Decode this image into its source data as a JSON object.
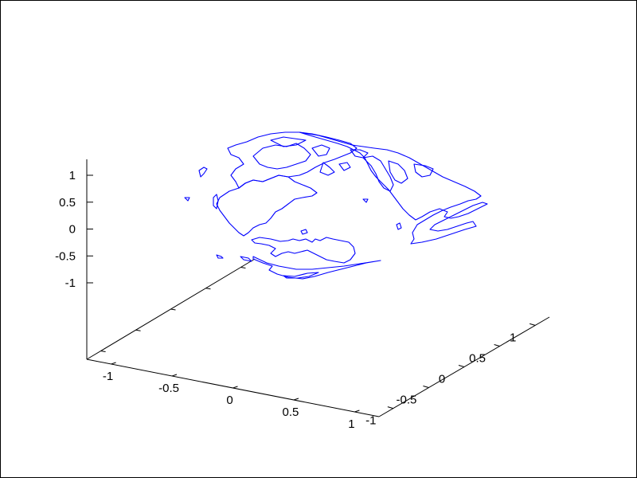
{
  "chart_data": {
    "type": "line",
    "projection": "3d",
    "title": "",
    "xlabel": "",
    "ylabel": "",
    "zlabel": "",
    "xlim": [
      -1.2,
      1.2
    ],
    "ylim": [
      -1.2,
      1.2
    ],
    "zlim": [
      -1.2,
      1.2
    ],
    "grid": false,
    "legend": "none",
    "series_color": "#0000ff",
    "x_ticks": [
      {
        "value": -1,
        "label": "-1"
      },
      {
        "value": -0.5,
        "label": "-0.5"
      },
      {
        "value": 0,
        "label": "0"
      },
      {
        "value": 0.5,
        "label": "0.5"
      },
      {
        "value": 1,
        "label": "1"
      }
    ],
    "y_ticks": [
      {
        "value": -1,
        "label": "-1"
      },
      {
        "value": -0.5,
        "label": "-0.5"
      },
      {
        "value": 0,
        "label": "0"
      },
      {
        "value": 0.5,
        "label": "0.5"
      },
      {
        "value": 1,
        "label": "1"
      }
    ],
    "z_ticks": [
      {
        "value": 1,
        "label": "1"
      },
      {
        "value": 0.5,
        "label": "0.5"
      },
      {
        "value": 0,
        "label": "0"
      },
      {
        "value": -0.5,
        "label": "-0.5"
      },
      {
        "value": -1,
        "label": "-1"
      }
    ],
    "series": [
      {
        "kind": "world-coastlines-on-unit-sphere",
        "paths": [
          "M318,322 L335,330 L350,334 L372,338 L392,338 L412,336 L432,334 L452,331 L478,327 L460,330 L440,335 L428,338 L412,342 L395,347 L380,350 L362,348 L348,344 L338,339 L342,334 L330,330 L318,325 Z",
          "M356,346 L370,347 L386,343 L400,342 L388,347 L374,349 L360,349 Z",
          "M316,301 L326,298 L340,300 L352,303 L362,302 L368,300 L376,302 L384,300 L392,304 L396,300 L402,302 L410,298 L418,300 L428,302 L438,304 L444,310 L446,318 L440,326 L432,330 L420,328 L410,326 L402,322 L394,318 L386,314 L378,316 L370,318 L362,316 L354,318 L346,322 L340,318 L346,312 L338,308 L328,306 L320,305 Z",
          "M276,248 L288,240 L300,236 L308,230 L318,226 L330,228 L340,224 L350,220 L362,222 L370,228 L380,232 L390,236 L398,242 L392,246 L380,248 L370,250 L362,256 L354,262 L346,266 L340,274 L334,280 L326,282 L318,286 L312,292 L306,296 L300,292 L294,286 L288,280 L282,272 L276,264 L272,256 Z",
          "M300,236 L296,228 L290,220 L296,212 L306,206 L300,198 L290,194 L286,186 L296,182 L310,178 L324,172 L340,168 L358,166 L376,166 L392,168 L410,172 L426,176 L440,180 L448,186 L440,192 L430,196 L420,200 L408,204 L396,210 L386,216 L376,220 L362,222 L350,220 L340,224 L330,228 L318,226 L308,230 Z",
          "M318,196 L330,186 L346,182 L360,184 L372,180 L382,186 L390,194 L384,202 L372,206 L360,210 L348,212 L336,210 L326,206 Z",
          "M340,176 L356,172 L370,174 L384,176 L372,182 L356,184 Z",
          "M392,186 L404,182 L414,186 L410,194 L400,196 Z",
          "M406,204 L414,210 L420,216 L412,220 L402,216 Z",
          "M426,206 L436,204 L440,210 L432,214 Z",
          "M376,166 L388,168 L400,170 L414,174 L428,178 L442,182 L456,184 L470,186 L486,188 L500,192 L514,198 L528,206 L542,214 L556,222 L570,228 L584,234 L596,240 L604,246 L598,250 L588,252 L578,256 L566,260 L556,264 L544,270 L534,276 L524,282 L518,292 L520,300 L516,306 L530,304 L548,300 L566,294 L584,288 L598,284 L594,278 L586,280 L574,284 L562,288 L550,290 L540,288 L546,282 L558,276 L570,270 L582,264 L594,258 L606,254 L612,256 L600,262 L588,268 L576,272 L566,274 L558,272 L562,266 L552,262 L540,266 L530,272 L522,276 L514,270 L506,262 L500,254 L494,246 L488,238 L480,230 L472,222 L466,214 L462,206 L458,198 L452,192 L444,188 L436,184 L424,180 L410,176 L396,172 Z",
          "M456,198 L468,196 L478,202 L484,212 L490,222 L494,232 L490,240 L482,236 L476,228 L472,218 L466,208 Z",
          "M488,202 L500,206 L508,214 L512,224 L504,230 L496,226 L490,216 Z",
          "M520,206 L534,208 L544,212 L540,220 L530,222 L522,216 Z",
          "M440,188 L452,188 L462,192 L456,198 L446,196 Z",
          "M302,322 L312,324 L316,328 L306,326 Z",
          "M272,320 L278,322 L280,324 L274,324 Z",
          "M232,248 L238,248 L236,252 Z",
          "M250,214 L256,210 L260,212 L256,218 L252,222 Z",
          "M268,248 L272,244 L274,252 L272,262 L268,258 Z",
          "M456,250 L462,250 L460,254 Z",
          "M498,282 L502,280 L504,286 L500,288 Z",
          "M378,290 L384,288 L386,292 L380,294 Z"
        ]
      }
    ]
  }
}
